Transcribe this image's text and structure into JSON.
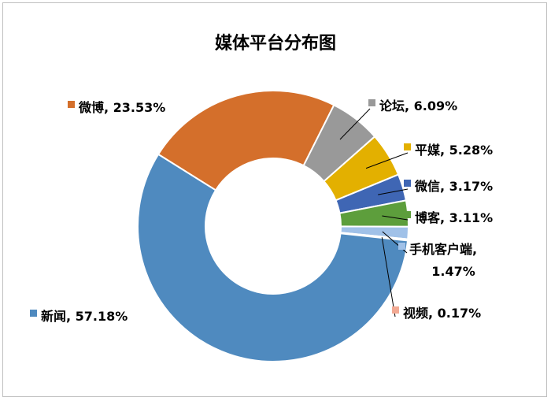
{
  "chart_data": {
    "type": "pie",
    "title": "媒体平台分布图",
    "unit": "%",
    "categories": [
      "微博",
      "论坛",
      "平媒",
      "微信",
      "博客",
      "手机客户端",
      "视频",
      "新闻"
    ],
    "values": [
      23.53,
      6.09,
      5.28,
      3.17,
      3.11,
      1.47,
      0.17,
      57.18
    ],
    "labels": [
      "微博, 23.53%",
      "论坛, 6.09%",
      "平媒, 5.28%",
      "微信, 3.17%",
      "博客, 3.11%",
      "手机客户端,",
      "视频, 0.17%",
      "新闻, 57.18%"
    ],
    "label_line2": [
      "",
      "",
      "",
      "",
      "",
      "1.47%",
      "",
      ""
    ],
    "colors": [
      "#d46f2b",
      "#999999",
      "#e3b000",
      "#3f66b4",
      "#5d9e3c",
      "#a0c1e8",
      "#f2a993",
      "#4f8abf"
    ],
    "donut": true,
    "legend": "none",
    "grid": false
  }
}
